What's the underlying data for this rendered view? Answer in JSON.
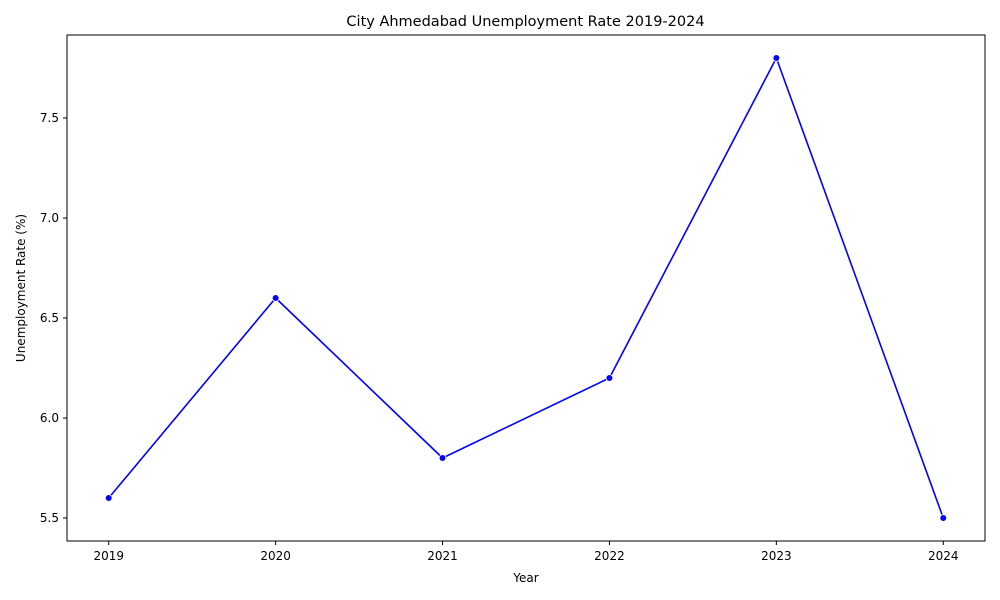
{
  "chart_data": {
    "type": "line",
    "title": "City Ahmedabad Unemployment Rate 2019-2024",
    "xlabel": "Year",
    "ylabel": "Unemployment Rate (%)",
    "x": [
      2019,
      2020,
      2021,
      2022,
      2023,
      2024
    ],
    "x_tick_labels": [
      "2019",
      "2020",
      "2021",
      "2022",
      "2023",
      "2024"
    ],
    "series": [
      {
        "values": [
          5.6,
          6.6,
          5.8,
          6.2,
          7.8,
          5.5
        ],
        "color": "#0000ff",
        "marker": "circle"
      }
    ],
    "y_ticks": [
      5.5,
      6.0,
      6.5,
      7.0,
      7.5
    ],
    "y_tick_labels": [
      "5.5",
      "6.0",
      "6.5",
      "7.0",
      "7.5"
    ],
    "xlim": [
      2018.75,
      2024.25
    ],
    "ylim": [
      5.385,
      7.915
    ],
    "grid": false,
    "legend": "none"
  }
}
